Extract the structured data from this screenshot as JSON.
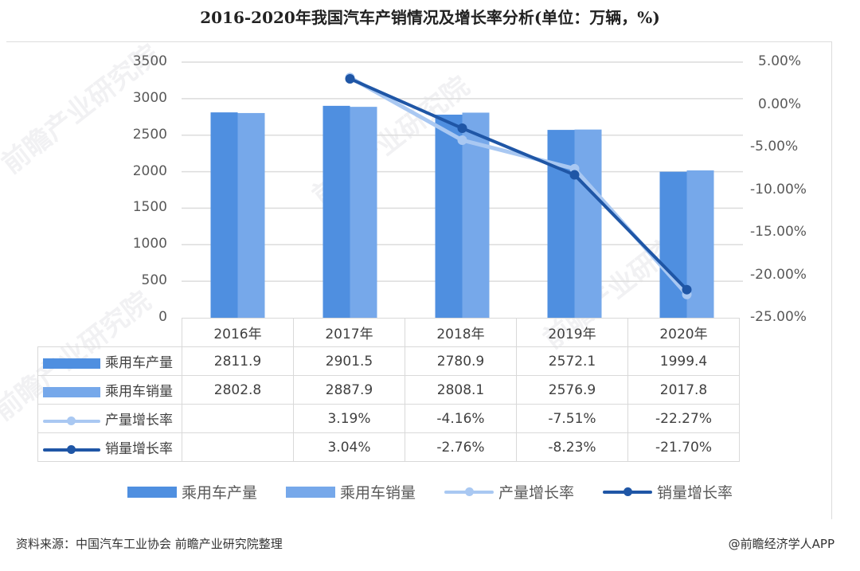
{
  "title": "2016-2020年我国汽车产销情况及增长率分析(单位：万辆，%)",
  "colors": {
    "production_bar": "#4f8fe0",
    "sales_bar": "#76a8ea",
    "production_growth_line": "#a9c8f2",
    "sales_growth_line": "#1f56a6",
    "gridline": "#dcdcdc"
  },
  "left_axis_ticks": [
    "3500",
    "3000",
    "2500",
    "2000",
    "1500",
    "1000",
    "500",
    "0"
  ],
  "right_axis_ticks": [
    "5.00%",
    "0.00%",
    "-5.00%",
    "-10.00%",
    "-15.00%",
    "-20.00%",
    "-25.00%"
  ],
  "table": {
    "years": [
      "2016年",
      "2017年",
      "2018年",
      "2019年",
      "2020年"
    ],
    "rows": [
      {
        "label": "乘用车产量",
        "values": [
          "2811.9",
          "2901.5",
          "2780.9",
          "2572.1",
          "1999.4"
        ]
      },
      {
        "label": "乘用车销量",
        "values": [
          "2802.8",
          "2887.9",
          "2808.1",
          "2576.9",
          "2017.8"
        ]
      },
      {
        "label": "产量增长率",
        "values": [
          "",
          "3.19%",
          "-4.16%",
          "-7.51%",
          "-22.27%"
        ]
      },
      {
        "label": "销量增长率",
        "values": [
          "",
          "3.04%",
          "-2.76%",
          "-8.23%",
          "-21.70%"
        ]
      }
    ]
  },
  "legend": [
    "乘用车产量",
    "乘用车销量",
    "产量增长率",
    "销量增长率"
  ],
  "footer": {
    "source": "资料来源：中国汽车工业协会 前瞻产业研究院整理",
    "credit": "@前瞻经济学人APP"
  },
  "watermark": "前瞻产业研究院",
  "chart_data": {
    "type": "bar",
    "title": "2016-2020年我国汽车产销情况及增长率分析(单位：万辆，%)",
    "categories": [
      "2016年",
      "2017年",
      "2018年",
      "2019年",
      "2020年"
    ],
    "series": [
      {
        "name": "乘用车产量",
        "type": "bar",
        "axis": "left",
        "unit": "万辆",
        "values": [
          2811.9,
          2901.5,
          2780.9,
          2572.1,
          1999.4
        ]
      },
      {
        "name": "乘用车销量",
        "type": "bar",
        "axis": "left",
        "unit": "万辆",
        "values": [
          2802.8,
          2887.9,
          2808.1,
          2576.9,
          2017.8
        ]
      },
      {
        "name": "产量增长率",
        "type": "line",
        "axis": "right",
        "unit": "%",
        "values": [
          null,
          3.19,
          -4.16,
          -7.51,
          -22.27
        ]
      },
      {
        "name": "销量增长率",
        "type": "line",
        "axis": "right",
        "unit": "%",
        "values": [
          null,
          3.04,
          -2.76,
          -8.23,
          -21.7
        ]
      }
    ],
    "xlabel": "",
    "ylabel": "万辆",
    "ylabel_right": "%",
    "ylim": [
      0,
      3500
    ],
    "ylim_right": [
      -25,
      5
    ],
    "yticks": [
      0,
      500,
      1000,
      1500,
      2000,
      2500,
      3000,
      3500
    ],
    "yticks_right": [
      -25,
      -20,
      -15,
      -10,
      -5,
      0,
      5
    ],
    "grid": true,
    "legend_position": "bottom",
    "data_table": true
  }
}
